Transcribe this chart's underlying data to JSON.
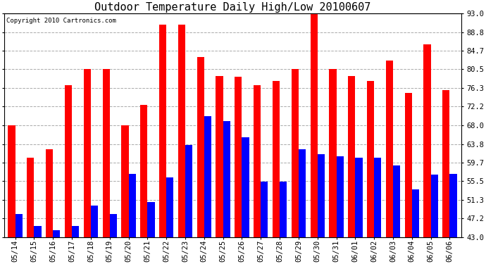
{
  "title": "Outdoor Temperature Daily High/Low 20100607",
  "copyright": "Copyright 2010 Cartronics.com",
  "dates": [
    "05/14",
    "05/15",
    "05/16",
    "05/17",
    "05/18",
    "05/19",
    "05/20",
    "05/21",
    "05/22",
    "05/23",
    "05/24",
    "05/25",
    "05/26",
    "05/27",
    "05/28",
    "05/29",
    "05/30",
    "05/31",
    "06/01",
    "06/02",
    "06/03",
    "06/04",
    "06/05",
    "06/06"
  ],
  "highs": [
    68.0,
    60.8,
    62.6,
    77.0,
    80.6,
    80.6,
    68.0,
    72.5,
    90.5,
    90.5,
    83.3,
    79.0,
    78.8,
    77.0,
    77.9,
    80.6,
    93.2,
    80.6,
    79.0,
    77.9,
    82.4,
    75.2,
    86.0,
    75.9
  ],
  "lows": [
    48.2,
    45.5,
    44.6,
    45.5,
    50.0,
    48.2,
    57.2,
    50.9,
    56.3,
    63.5,
    70.0,
    68.9,
    65.3,
    55.4,
    55.4,
    62.6,
    61.5,
    61.0,
    60.8,
    60.8,
    59.0,
    53.6,
    57.0,
    57.2
  ],
  "high_color": "#ff0000",
  "low_color": "#0000ff",
  "yticks": [
    43.0,
    47.2,
    51.3,
    55.5,
    59.7,
    63.8,
    68.0,
    72.2,
    76.3,
    80.5,
    84.7,
    88.8,
    93.0
  ],
  "ymin": 43.0,
  "ymax": 93.0,
  "background_color": "#ffffff",
  "grid_color": "#aaaaaa",
  "bar_width": 0.38,
  "title_fontsize": 11,
  "tick_fontsize": 7.5,
  "copyright_fontsize": 6.5
}
